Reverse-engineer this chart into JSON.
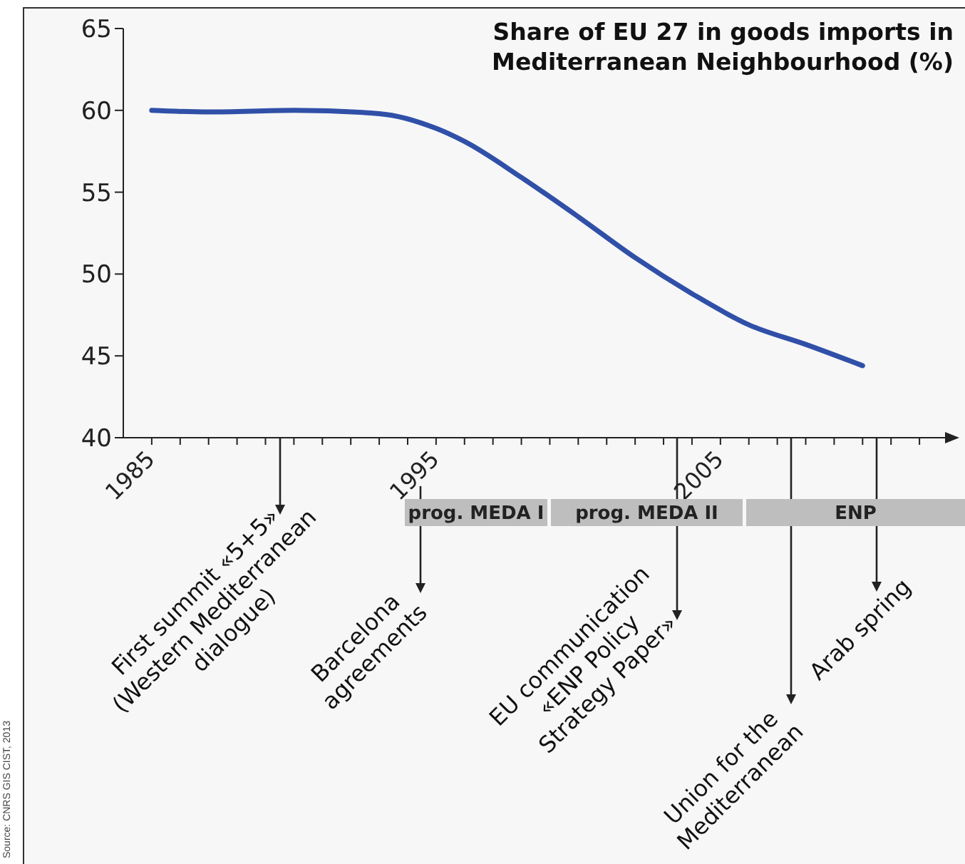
{
  "chart_data": {
    "type": "line",
    "title": "Share of EU 27 in goods imports in Mediterranean Neighbourhood (%)",
    "x": [
      1985,
      1987,
      1990,
      1993,
      1995,
      1996,
      1998,
      2000,
      2002,
      2004,
      2006,
      2008,
      2010
    ],
    "series": [
      {
        "color": "#3050a8",
        "values": [
          60,
          59.9,
          60,
          59.8,
          58.9,
          58.1,
          55.9,
          53.5,
          51,
          48.8,
          46.9,
          45.7,
          44.4
        ]
      }
    ],
    "xlim": [
      1984,
      2013
    ],
    "xticks": [
      {
        "value": 1985,
        "label": "1985"
      },
      {
        "value": 1986,
        "label": null
      },
      {
        "value": 1987,
        "label": null
      },
      {
        "value": 1988,
        "label": null
      },
      {
        "value": 1989,
        "label": null
      },
      {
        "value": 1990,
        "label": null
      },
      {
        "value": 1991,
        "label": null
      },
      {
        "value": 1992,
        "label": null
      },
      {
        "value": 1993,
        "label": null
      },
      {
        "value": 1994,
        "label": null
      },
      {
        "value": 1995,
        "label": "1995"
      },
      {
        "value": 1996,
        "label": null
      },
      {
        "value": 1997,
        "label": null
      },
      {
        "value": 1998,
        "label": null
      },
      {
        "value": 1999,
        "label": null
      },
      {
        "value": 2000,
        "label": null
      },
      {
        "value": 2001,
        "label": null
      },
      {
        "value": 2002,
        "label": null
      },
      {
        "value": 2003,
        "label": null
      },
      {
        "value": 2004,
        "label": null
      },
      {
        "value": 2005,
        "label": "2005"
      },
      {
        "value": 2006,
        "label": null
      },
      {
        "value": 2007,
        "label": null
      },
      {
        "value": 2008,
        "label": null
      },
      {
        "value": 2009,
        "label": null
      },
      {
        "value": 2010,
        "label": null
      },
      {
        "value": 2011,
        "label": null
      },
      {
        "value": 2012,
        "label": null
      }
    ],
    "ylim": [
      40,
      65
    ],
    "yticks": [
      40,
      45,
      50,
      55,
      60,
      65
    ],
    "marker": "none",
    "line_style": "solid",
    "annotations": [
      "First summit «5+5» (Western Mediterranean dialogue)",
      "Barcelona agreements",
      "EU communication «ENP Policy Strategy Paper»",
      "Union for the Mediterranean",
      "Arab spring",
      "prog. MEDA I",
      "prog. MEDA II",
      "ENP",
      "Source: CNRS GIS CIST, 2013"
    ]
  }
}
